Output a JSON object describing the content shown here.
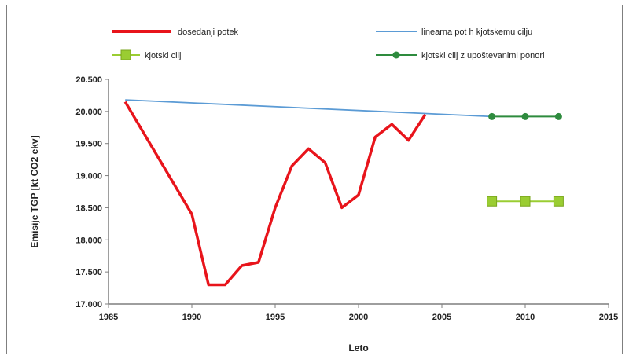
{
  "chart_data": {
    "type": "line",
    "title": "",
    "xlabel": "Leto",
    "ylabel": "Emisije TGP [kt CO2 ekv]",
    "xlim": [
      1985,
      2015
    ],
    "ylim": [
      17000,
      20500
    ],
    "x_ticks": [
      1985,
      1990,
      1995,
      2000,
      2005,
      2010,
      2015
    ],
    "x_tick_labels": [
      "1985",
      "1990",
      "1995",
      "2000",
      "2005",
      "2010",
      "2015"
    ],
    "y_ticks": [
      17000,
      17500,
      18000,
      18500,
      19000,
      19500,
      20000,
      20500
    ],
    "y_tick_labels": [
      "17.000",
      "17.500",
      "18.000",
      "18.500",
      "19.000",
      "19.500",
      "20.000",
      "20.500"
    ],
    "grid": false,
    "legend_position": "top",
    "series": [
      {
        "name": "dosedanji potek",
        "color": "#e8141b",
        "marker": "none",
        "points": [
          [
            1986,
            20150
          ],
          [
            1990,
            18400
          ],
          [
            1991,
            17300
          ],
          [
            1992,
            17300
          ],
          [
            1993,
            17600
          ],
          [
            1994,
            17650
          ],
          [
            1995,
            18500
          ],
          [
            1996,
            19150
          ],
          [
            1997,
            19420
          ],
          [
            1998,
            19200
          ],
          [
            1999,
            18500
          ],
          [
            2000,
            18700
          ],
          [
            2001,
            19600
          ],
          [
            2002,
            19800
          ],
          [
            2003,
            19550
          ],
          [
            2004,
            19950
          ]
        ]
      },
      {
        "name": "linearna pot h kjotskemu cilju",
        "color": "#5b9bd5",
        "marker": "none",
        "points": [
          [
            1986,
            20180
          ],
          [
            2008,
            19920
          ]
        ]
      },
      {
        "name": "kjotski cilj",
        "color": "#9acd32",
        "marker": "square",
        "points": [
          [
            2008,
            18600
          ],
          [
            2010,
            18600
          ],
          [
            2012,
            18600
          ]
        ]
      },
      {
        "name": "kjotski cilj z upoštevanimi ponori",
        "color": "#2e8b3e",
        "marker": "circle",
        "points": [
          [
            2008,
            19920
          ],
          [
            2010,
            19920
          ],
          [
            2012,
            19920
          ]
        ]
      }
    ]
  }
}
